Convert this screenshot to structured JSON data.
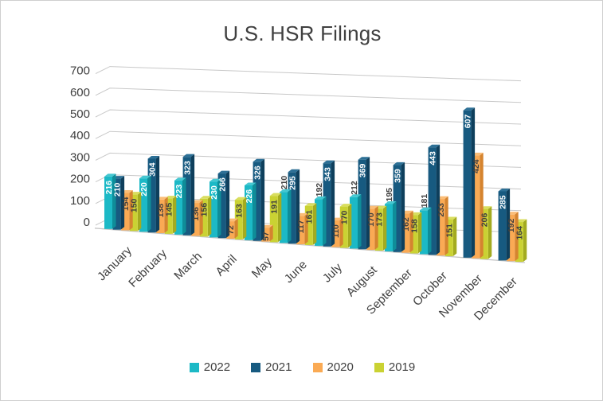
{
  "chart_data": {
    "type": "bar",
    "projection": "3d-clustered-column",
    "title": "U.S. HSR Filings",
    "xlabel": "",
    "ylabel": "",
    "ylim": [
      0,
      700
    ],
    "yticks": [
      0,
      100,
      200,
      300,
      400,
      500,
      600,
      700
    ],
    "grid": true,
    "grid_color": "#c8c8c8",
    "axis_text_color": "#404040",
    "legend_position": "bottom",
    "categories": [
      "January",
      "February",
      "March",
      "April",
      "May",
      "June",
      "July",
      "August",
      "September",
      "October",
      "November",
      "December"
    ],
    "series": [
      {
        "name": "2022",
        "color": "#1cb9c6",
        "top_color": "#45c7d1",
        "side_color": "#0f8d99",
        "label_color_in": "#ffffff",
        "label_color_out": "#404040",
        "values": [
          216,
          220,
          223,
          230,
          226,
          210,
          192,
          212,
          195,
          181,
          null,
          null
        ],
        "label_pos": [
          "in",
          "in",
          "in",
          "in",
          "in",
          "out",
          "out",
          "out",
          "out",
          "out",
          null,
          null
        ]
      },
      {
        "name": "2021",
        "color": "#175a80",
        "top_color": "#2d7096",
        "side_color": "#0e3f5c",
        "label_color_in": "#ffffff",
        "label_color_out": "#404040",
        "values": [
          210,
          304,
          323,
          266,
          326,
          295,
          343,
          369,
          359,
          443,
          607,
          285
        ],
        "label_pos": [
          "in",
          "in",
          "in",
          "in",
          "in",
          "in",
          "in",
          "in",
          "in",
          "in",
          "in",
          "in"
        ]
      },
      {
        "name": "2020",
        "color": "#faaa54",
        "top_color": "#fbbd77",
        "side_color": "#d5842f",
        "label_color_in": "#404040",
        "label_color_out": "#404040",
        "values": [
          154,
          138,
          136,
          72,
          57,
          117,
          110,
          170,
          162,
          233,
          424,
          192
        ],
        "label_pos": [
          "in",
          "in",
          "in",
          "in",
          "in",
          "in",
          "in",
          "in",
          "in",
          "in",
          "in",
          "in"
        ]
      },
      {
        "name": "2019",
        "color": "#cad233",
        "top_color": "#d9de5f",
        "side_color": "#a3ab20",
        "label_color_in": "#404040",
        "label_color_out": "#404040",
        "values": [
          150,
          145,
          156,
          163,
          191,
          161,
          170,
          173,
          158,
          151,
          206,
          164
        ],
        "label_pos": [
          "in",
          "in",
          "in",
          "in",
          "in",
          "in",
          "in",
          "in",
          "in",
          "in",
          "in",
          "in"
        ]
      }
    ]
  }
}
